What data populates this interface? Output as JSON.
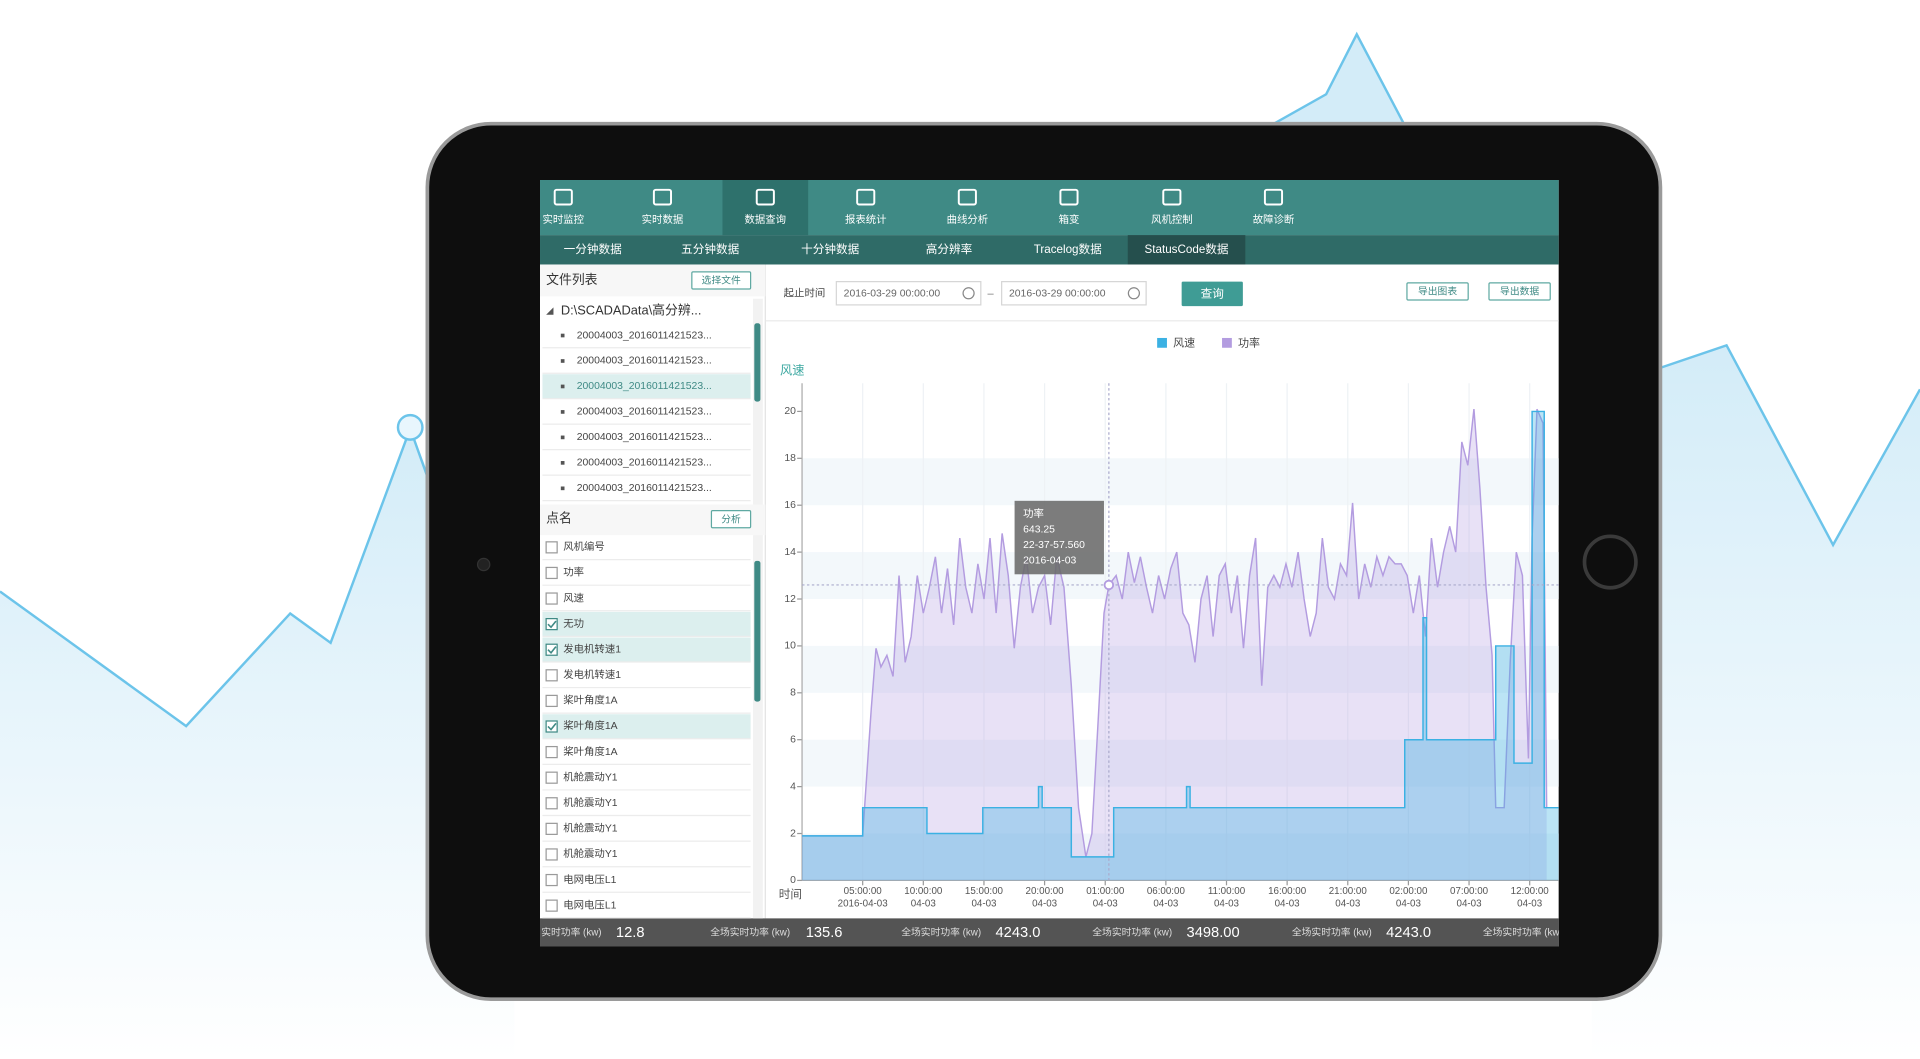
{
  "nav": [
    "实时监控",
    "实时数据",
    "数据查询",
    "报表统计",
    "曲线分析",
    "箱变",
    "风机控制",
    "故障诊断"
  ],
  "active_nav": 2,
  "tabs": [
    "一分钟数据",
    "五分钟数据",
    "十分钟数据",
    "高分辨率",
    "Tracelog数据",
    "StatusCode数据"
  ],
  "active_tab": 5,
  "files": {
    "title": "文件列表",
    "button": "选择文件",
    "root": "D:\\SCADAData\\高分辨...",
    "items": [
      "20004003_2016011421523...",
      "20004003_2016011421523...",
      "20004003_2016011421523...",
      "20004003_2016011421523...",
      "20004003_2016011421523...",
      "20004003_2016011421523...",
      "20004003_2016011421523..."
    ],
    "selected": 2
  },
  "points": {
    "title": "点名",
    "button": "分析",
    "items": [
      {
        "label": "风机编号",
        "checked": false
      },
      {
        "label": "功率",
        "checked": false
      },
      {
        "label": "风速",
        "checked": false
      },
      {
        "label": "无功",
        "checked": true
      },
      {
        "label": "发电机转速1",
        "checked": true
      },
      {
        "label": "发电机转速1",
        "checked": false
      },
      {
        "label": "桨叶角度1A",
        "checked": false
      },
      {
        "label": "桨叶角度1A",
        "checked": true
      },
      {
        "label": "桨叶角度1A",
        "checked": false
      },
      {
        "label": "机舱震动Y1",
        "checked": false
      },
      {
        "label": "机舱震动Y1",
        "checked": false
      },
      {
        "label": "机舱震动Y1",
        "checked": false
      },
      {
        "label": "机舱震动Y1",
        "checked": false
      },
      {
        "label": "电网电压L1",
        "checked": false
      },
      {
        "label": "电网电压L1",
        "checked": false
      }
    ]
  },
  "toolbar": {
    "label": "起止时间",
    "start": "2016-03-29  00:00:00",
    "separator": "–",
    "end": "2016-03-29  00:00:00",
    "query": "查询",
    "export_chart": "导出图表",
    "export_data": "导出数据"
  },
  "chart_data": {
    "type": "area",
    "y_label": "风速",
    "x_label": "时间",
    "xlim": [
      0,
      62.4
    ],
    "ylim": [
      0,
      21.2
    ],
    "yticks": [
      0,
      2,
      4,
      6,
      8,
      10,
      12,
      14,
      16,
      18,
      20
    ],
    "xticks": [
      {
        "value": 5,
        "label": "05:00:00",
        "date": "2016-04-03"
      },
      {
        "value": 10,
        "label": "10:00:00",
        "date": "04-03"
      },
      {
        "value": 15,
        "label": "15:00:00",
        "date": "04-03"
      },
      {
        "value": 20,
        "label": "20:00:00",
        "date": "04-03"
      },
      {
        "value": 25,
        "label": "01:00:00",
        "date": "04-03"
      },
      {
        "value": 30,
        "label": "06:00:00",
        "date": "04-03"
      },
      {
        "value": 35,
        "label": "11:00:00",
        "date": "04-03"
      },
      {
        "value": 40,
        "label": "16:00:00",
        "date": "04-03"
      },
      {
        "value": 45,
        "label": "21:00:00",
        "date": "04-03"
      },
      {
        "value": 50,
        "label": "02:00:00",
        "date": "04-03"
      },
      {
        "value": 55,
        "label": "07:00:00",
        "date": "04-03"
      },
      {
        "value": 60,
        "label": "12:00:00",
        "date": "04-03"
      }
    ],
    "grid": true,
    "series": [
      {
        "name": "风速",
        "color": "#3bb1e3",
        "x": [
          0,
          5,
          5,
          10.3,
          10.3,
          14.9,
          14.9,
          19.5,
          19.5,
          19.8,
          19.8,
          22.2,
          22.2,
          25.7,
          25.7,
          31.7,
          31.7,
          32,
          32,
          49.7,
          49.7,
          51.2,
          51.2,
          51.5,
          51.5,
          57.2,
          57.2,
          58.7,
          58.7,
          60.2,
          60.2,
          61.2,
          61.2,
          62.4
        ],
        "values": [
          1.9,
          1.9,
          3.1,
          3.1,
          2.0,
          2.0,
          3.1,
          3.1,
          4.0,
          4.0,
          3.1,
          3.1,
          1.0,
          1.0,
          3.1,
          3.1,
          4.0,
          4.0,
          3.1,
          3.1,
          6.0,
          6.0,
          11.2,
          11.2,
          6.0,
          6.0,
          10.0,
          10.0,
          5.0,
          5.0,
          20.0,
          20.0,
          3.1,
          3.1
        ]
      },
      {
        "name": "功率",
        "color": "#b39ce0",
        "x": [
          0,
          5,
          5.7,
          6.1,
          6.5,
          7,
          7.5,
          8,
          8.5,
          9,
          9.5,
          10,
          10.5,
          11,
          11.5,
          12,
          12.5,
          13,
          13.5,
          14,
          14.5,
          15,
          15.5,
          16,
          16.5,
          17,
          17.5,
          18,
          18.5,
          19,
          19.5,
          20,
          20.5,
          21,
          21.6,
          22.2,
          22.8,
          23.4,
          23.9,
          24.4,
          24.9,
          25.3,
          25.9,
          26.4,
          26.9,
          27.4,
          27.9,
          28.4,
          28.9,
          29.4,
          29.9,
          30.4,
          30.9,
          31.4,
          31.9,
          32.4,
          32.9,
          33.4,
          33.9,
          34.4,
          34.9,
          35.4,
          35.9,
          36.4,
          36.9,
          37.4,
          37.9,
          38.4,
          38.9,
          39.4,
          39.9,
          40.4,
          40.9,
          41.4,
          41.9,
          42.4,
          42.9,
          43.4,
          43.9,
          44.4,
          44.9,
          45.4,
          45.9,
          46.4,
          46.9,
          47.4,
          47.9,
          48.4,
          48.9,
          49.4,
          49.9,
          50.4,
          50.9,
          51.4,
          51.9,
          52.4,
          52.9,
          53.4,
          53.9,
          54.4,
          54.9,
          55.4,
          55.9,
          56.4,
          56.9,
          57.2,
          57.6,
          57.9,
          58.4,
          58.9,
          59.4,
          59.9,
          60.2,
          60.6,
          61.1,
          61.4
        ],
        "values": [
          1.9,
          1.9,
          7.3,
          9.9,
          9.1,
          9.6,
          8.7,
          13.0,
          9.3,
          10.4,
          13.0,
          11.4,
          12.5,
          13.8,
          11.4,
          13.3,
          10.9,
          14.6,
          12.5,
          11.4,
          13.5,
          12.0,
          14.6,
          11.4,
          14.8,
          13.0,
          9.9,
          12.5,
          13.8,
          11.4,
          12.5,
          13.0,
          10.9,
          13.8,
          12.5,
          8.3,
          3.1,
          1.0,
          2.0,
          6.7,
          11.4,
          12.6,
          13.0,
          12.0,
          14.0,
          12.7,
          13.8,
          12.5,
          11.4,
          13.0,
          12.0,
          13.3,
          14.0,
          11.4,
          10.9,
          9.3,
          12.0,
          13.0,
          10.4,
          13.0,
          13.5,
          11.4,
          13.0,
          9.9,
          13.0,
          14.6,
          8.3,
          12.5,
          13.0,
          12.5,
          13.5,
          12.5,
          14.0,
          12.0,
          10.4,
          11.4,
          14.6,
          12.5,
          12.0,
          13.5,
          13.0,
          16.1,
          12.0,
          13.5,
          12.5,
          13.8,
          13.0,
          13.8,
          13.5,
          13.5,
          13.0,
          11.4,
          13.0,
          10.4,
          14.6,
          12.5,
          14.0,
          15.1,
          14.0,
          18.7,
          17.7,
          20.1,
          16.7,
          12.5,
          9.6,
          3.1,
          3.1,
          3.1,
          9.4,
          14.0,
          13.0,
          5.2,
          14.6,
          20.1,
          19.5,
          3.1
        ]
      }
    ],
    "tooltip": {
      "lines": [
        "功率",
        "643.25",
        "22-37-57.560",
        "2016-04-03"
      ],
      "x": 25.3,
      "y": 12.6
    }
  },
  "status_bar": [
    {
      "label": "实时功率 (kw)",
      "value": "12.8"
    },
    {
      "label": "全场实时功率 (kw)",
      "value": "135.6"
    },
    {
      "label": "全场实时功率 (kw)",
      "value": "4243.0"
    },
    {
      "label": "全场实时功率 (kw)",
      "value": "3498.00"
    },
    {
      "label": "全场实时功率 (kw)",
      "value": "4243.0"
    },
    {
      "label": "全场实时功率 (kw)",
      "value": ""
    }
  ]
}
